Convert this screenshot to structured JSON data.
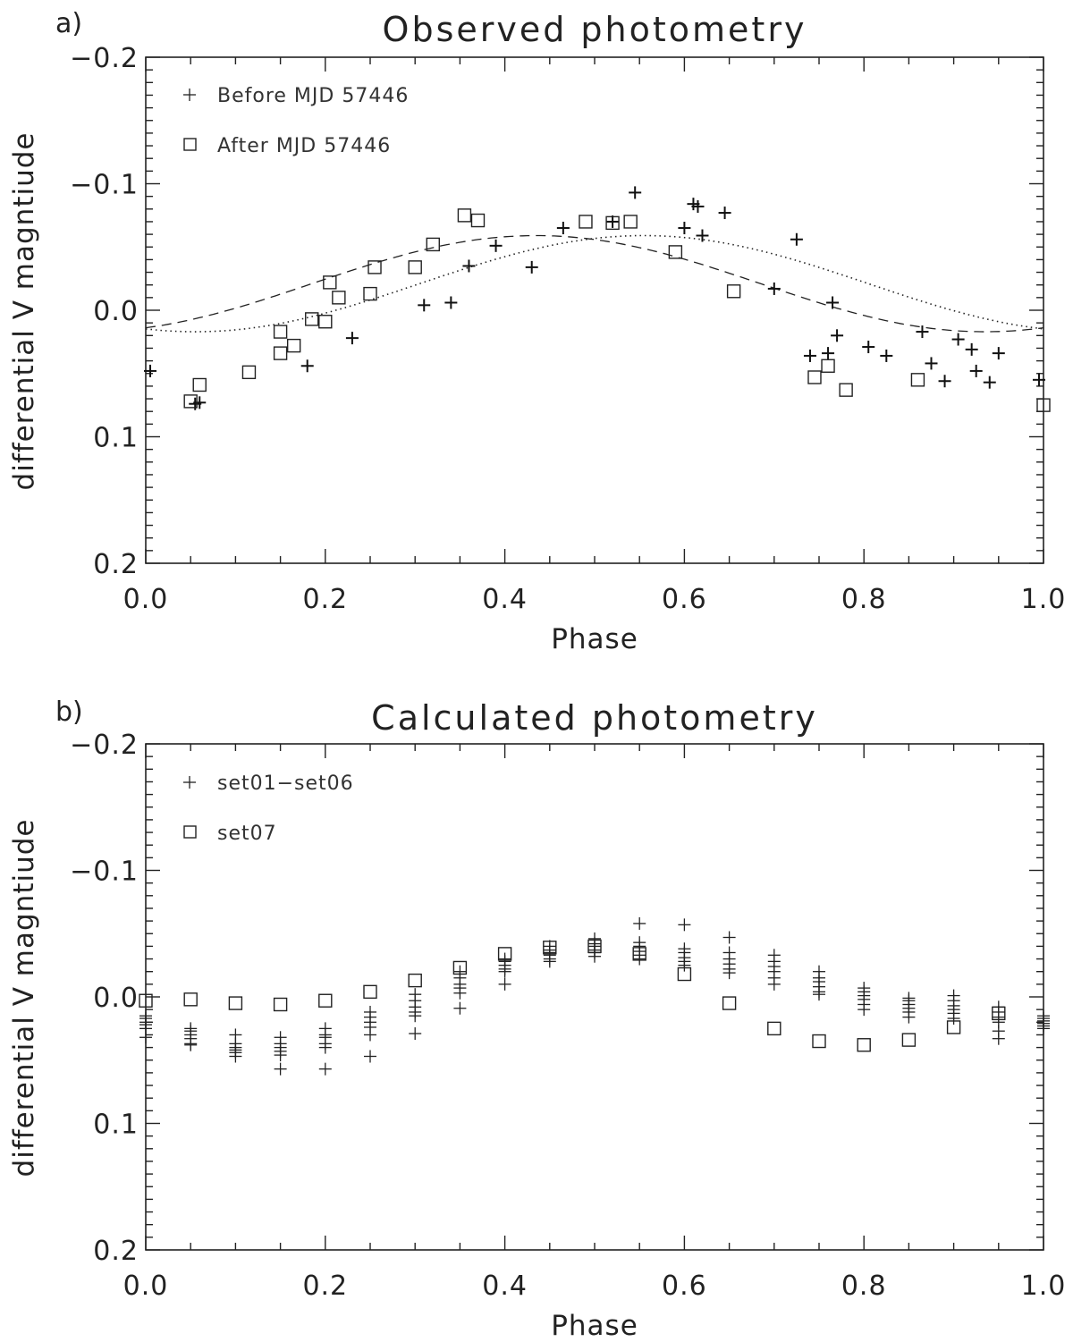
{
  "chart_data": [
    {
      "id": "a",
      "type": "scatter",
      "panel_label": "a)",
      "title": "Observed photometry",
      "xlabel": "Phase",
      "ylabel": "differential V magntiude",
      "xlim": [
        0.0,
        1.0
      ],
      "ylim": [
        0.2,
        -0.2
      ],
      "x_ticks": [
        0.0,
        0.2,
        0.4,
        0.6,
        0.8,
        1.0
      ],
      "x_tick_labels": [
        "0.0",
        "0.2",
        "0.4",
        "0.6",
        "0.8",
        "1.0"
      ],
      "y_ticks": [
        -0.2,
        -0.1,
        0.0,
        0.1,
        0.2
      ],
      "y_tick_labels": [
        "−0.2",
        "−0.1",
        "0.0",
        "0.1",
        "0.2"
      ],
      "legend": [
        "Before MJD 57446",
        "After MJD 57446"
      ],
      "series": [
        {
          "name": "Before MJD 57446",
          "marker": "plus",
          "x": [
            0.005,
            0.055,
            0.06,
            0.18,
            0.23,
            0.31,
            0.34,
            0.36,
            0.39,
            0.43,
            0.465,
            0.52,
            0.545,
            0.6,
            0.61,
            0.615,
            0.62,
            0.645,
            0.7,
            0.725,
            0.74,
            0.76,
            0.765,
            0.77,
            0.805,
            0.825,
            0.865,
            0.875,
            0.89,
            0.905,
            0.92,
            0.925,
            0.94,
            0.95,
            0.995
          ],
          "y": [
            0.048,
            0.074,
            0.073,
            0.044,
            0.022,
            -0.004,
            -0.006,
            -0.035,
            -0.051,
            -0.034,
            -0.065,
            -0.07,
            -0.093,
            -0.065,
            -0.084,
            -0.082,
            -0.059,
            -0.077,
            -0.017,
            -0.056,
            0.036,
            0.034,
            -0.006,
            0.02,
            0.029,
            0.036,
            0.017,
            0.042,
            0.056,
            0.023,
            0.031,
            0.048,
            0.057,
            0.034,
            0.055
          ]
        },
        {
          "name": "After MJD 57446",
          "marker": "square",
          "x": [
            0.05,
            0.06,
            0.115,
            0.15,
            0.15,
            0.165,
            0.185,
            0.2,
            0.205,
            0.215,
            0.25,
            0.255,
            0.3,
            0.32,
            0.355,
            0.37,
            0.49,
            0.52,
            0.54,
            0.59,
            0.655,
            0.745,
            0.76,
            0.78,
            0.86,
            1.0
          ],
          "y": [
            0.072,
            0.059,
            0.049,
            0.034,
            0.017,
            0.028,
            0.007,
            0.009,
            -0.022,
            -0.01,
            -0.013,
            -0.034,
            -0.034,
            -0.052,
            -0.075,
            -0.071,
            -0.07,
            -0.069,
            -0.07,
            -0.046,
            -0.015,
            0.053,
            0.044,
            0.063,
            0.055,
            0.075
          ]
        }
      ],
      "curves": [
        {
          "name": "dashed fit",
          "style": "dashed",
          "mean": -0.016,
          "amplitude": 0.076,
          "peak_phase": 0.435
        },
        {
          "name": "dotted fit",
          "style": "dotted",
          "mean": -0.016,
          "amplitude": 0.076,
          "peak_phase": 0.555
        }
      ]
    },
    {
      "id": "b",
      "type": "scatter",
      "panel_label": "b)",
      "title": "Calculated photometry",
      "xlabel": "Phase",
      "ylabel": "differential V magntiude",
      "xlim": [
        0.0,
        1.0
      ],
      "ylim": [
        0.2,
        -0.2
      ],
      "x_ticks": [
        0.0,
        0.2,
        0.4,
        0.6,
        0.8,
        1.0
      ],
      "x_tick_labels": [
        "0.0",
        "0.2",
        "0.4",
        "0.6",
        "0.8",
        "1.0"
      ],
      "y_ticks": [
        -0.2,
        -0.1,
        0.0,
        0.1,
        0.2
      ],
      "y_tick_labels": [
        "−0.2",
        "−0.1",
        "0.0",
        "0.1",
        "0.2"
      ],
      "legend": [
        "set01−set06",
        "set07"
      ],
      "series": [
        {
          "name": "set01−set06",
          "marker": "plus",
          "phases": [
            0.0,
            0.05,
            0.1,
            0.15,
            0.2,
            0.25,
            0.3,
            0.35,
            0.4,
            0.45,
            0.5,
            0.55,
            0.6,
            0.65,
            0.7,
            0.75,
            0.8,
            0.85,
            0.9,
            0.95,
            1.0
          ],
          "values": [
            [
              0.015,
              0.017,
              0.02,
              0.022,
              0.025,
              0.032
            ],
            [
              0.025,
              0.027,
              0.03,
              0.033,
              0.037,
              0.038
            ],
            [
              0.03,
              0.037,
              0.04,
              0.042,
              0.044,
              0.047
            ],
            [
              0.032,
              0.037,
              0.04,
              0.043,
              0.046,
              0.057
            ],
            [
              0.025,
              0.03,
              0.032,
              0.037,
              0.04,
              0.057
            ],
            [
              0.012,
              0.016,
              0.02,
              0.024,
              0.03,
              0.047
            ],
            [
              -0.002,
              0.003,
              0.008,
              0.012,
              0.015,
              0.029
            ],
            [
              -0.02,
              -0.015,
              -0.01,
              -0.007,
              -0.003,
              0.009
            ],
            [
              -0.03,
              -0.028,
              -0.025,
              -0.022,
              -0.02,
              -0.01
            ],
            [
              -0.04,
              -0.037,
              -0.035,
              -0.033,
              -0.03,
              -0.028
            ],
            [
              -0.046,
              -0.042,
              -0.04,
              -0.037,
              -0.035,
              -0.032
            ],
            [
              -0.058,
              -0.043,
              -0.04,
              -0.036,
              -0.033,
              -0.03
            ],
            [
              -0.057,
              -0.038,
              -0.035,
              -0.031,
              -0.028,
              -0.025
            ],
            [
              -0.047,
              -0.035,
              -0.03,
              -0.026,
              -0.022,
              -0.019
            ],
            [
              -0.033,
              -0.028,
              -0.024,
              -0.02,
              -0.015,
              -0.01
            ],
            [
              -0.02,
              -0.015,
              -0.012,
              -0.008,
              -0.004,
              -0.002
            ],
            [
              -0.007,
              -0.004,
              -0.001,
              0.002,
              0.006,
              0.01
            ],
            [
              0.001,
              0.003,
              0.006,
              0.009,
              0.012,
              0.016
            ],
            [
              -0.001,
              0.003,
              0.007,
              0.01,
              0.013,
              0.017
            ],
            [
              0.008,
              0.012,
              0.016,
              0.02,
              0.027,
              0.033
            ],
            [
              0.015,
              0.017,
              0.019,
              0.021,
              0.023,
              0.025
            ]
          ]
        },
        {
          "name": "set07",
          "marker": "square",
          "x": [
            0.0,
            0.05,
            0.1,
            0.15,
            0.2,
            0.25,
            0.3,
            0.35,
            0.4,
            0.45,
            0.5,
            0.55,
            0.6,
            0.65,
            0.7,
            0.75,
            0.8,
            0.85,
            0.9,
            0.95
          ],
          "y": [
            0.003,
            0.002,
            0.005,
            0.006,
            0.003,
            -0.004,
            -0.013,
            -0.023,
            -0.034,
            -0.039,
            -0.04,
            -0.034,
            -0.018,
            0.005,
            0.025,
            0.035,
            0.038,
            0.034,
            0.024,
            0.013
          ]
        }
      ]
    }
  ]
}
